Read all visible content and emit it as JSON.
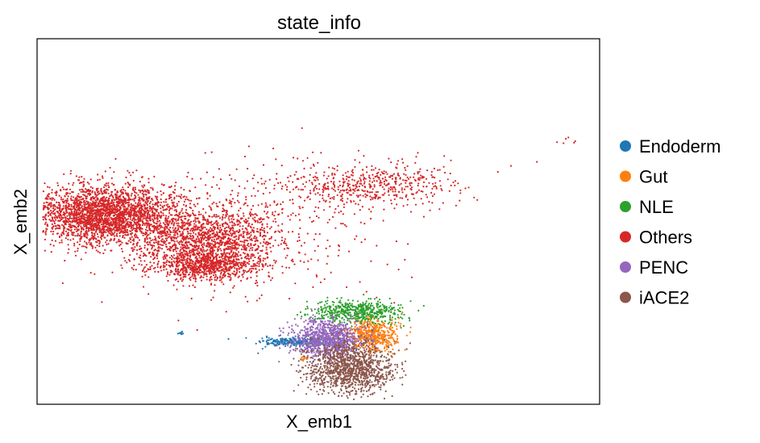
{
  "chart_data": {
    "type": "scatter",
    "title": "state_info",
    "xlabel": "X_emb1",
    "ylabel": "X_emb2",
    "xlim": [
      0,
      100
    ],
    "ylim": [
      0,
      100
    ],
    "grid": false,
    "ticks": false,
    "legend_placement": "right",
    "series": [
      {
        "name": "Endoderm",
        "color": "#1f77b4",
        "clusters": [
          {
            "cx": 46,
            "cy": 17,
            "sx": 3.0,
            "sy": 0.6,
            "n": 260
          },
          {
            "cx": 25.5,
            "cy": 19.5,
            "sx": 0.3,
            "sy": 0.2,
            "n": 10
          }
        ]
      },
      {
        "name": "Gut",
        "color": "#ff7f0e",
        "clusters": [
          {
            "cx": 59.5,
            "cy": 19,
            "sx": 2.2,
            "sy": 2.2,
            "n": 520
          },
          {
            "cx": 47.5,
            "cy": 12.5,
            "sx": 0.6,
            "sy": 0.3,
            "n": 12
          }
        ]
      },
      {
        "name": "NLE",
        "color": "#2ca02c",
        "clusters": [
          {
            "cx": 57,
            "cy": 25.5,
            "sx": 3.8,
            "sy": 1.6,
            "n": 520
          }
        ]
      },
      {
        "name": "Others",
        "color": "#d62728",
        "clusters": [
          {
            "cx": 12,
            "cy": 52,
            "sx": 6.5,
            "sy": 4.0,
            "n": 2600
          },
          {
            "cx": 30,
            "cy": 45,
            "sx": 6.5,
            "sy": 4.5,
            "n": 1300
          },
          {
            "cx": 30,
            "cy": 38,
            "sx": 5.0,
            "sy": 2.0,
            "n": 700
          },
          {
            "cx": 58,
            "cy": 60,
            "sx": 8.0,
            "sy": 3.0,
            "n": 500
          },
          {
            "cx": 38,
            "cy": 48,
            "sx": 12.0,
            "sy": 9.0,
            "n": 450
          },
          {
            "cx": 94,
            "cy": 72,
            "sx": 1.0,
            "sy": 0.7,
            "n": 6
          }
        ]
      },
      {
        "name": "PENC",
        "color": "#9467bd",
        "clusters": [
          {
            "cx": 51.5,
            "cy": 18,
            "sx": 3.0,
            "sy": 2.5,
            "n": 900
          }
        ]
      },
      {
        "name": "iACE2",
        "color": "#8c564b",
        "clusters": [
          {
            "cx": 55.5,
            "cy": 10,
            "sx": 3.8,
            "sy": 3.5,
            "n": 1200
          }
        ]
      }
    ]
  }
}
